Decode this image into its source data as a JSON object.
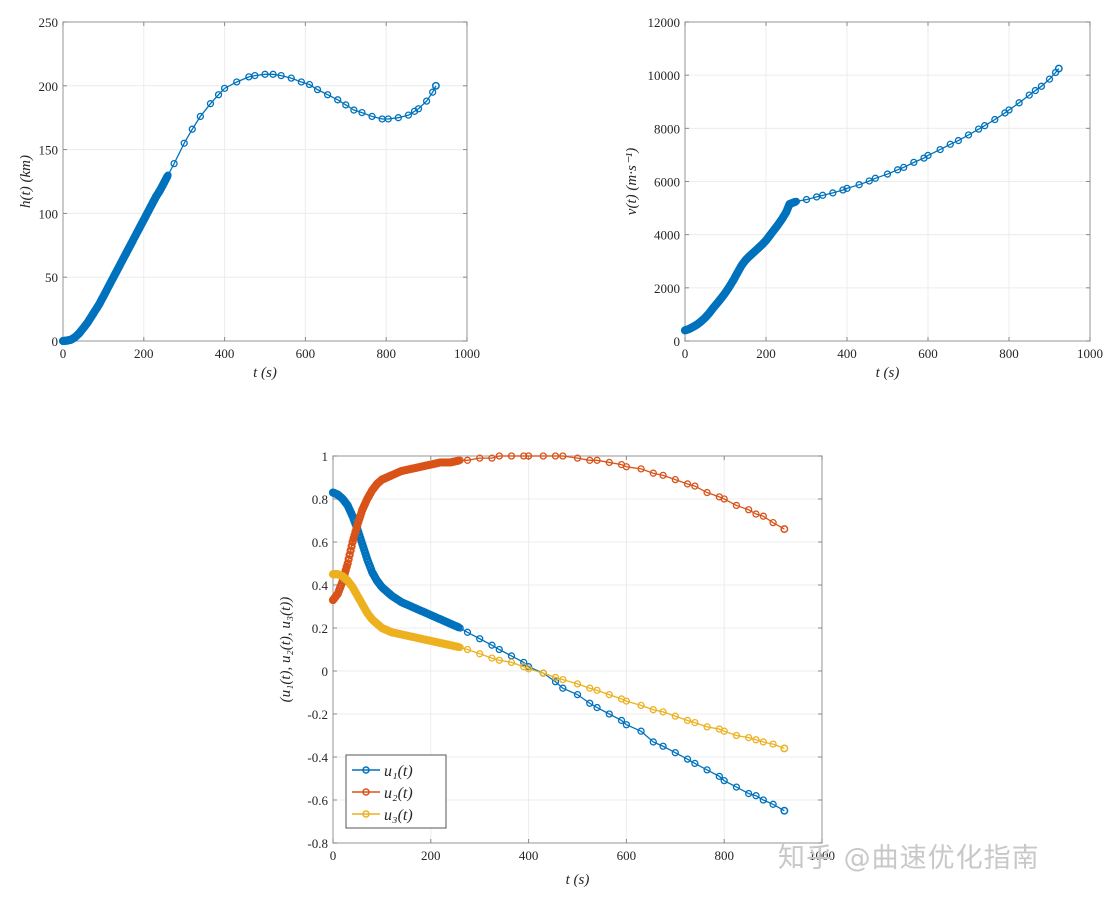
{
  "chart_data": [
    {
      "id": "altitude",
      "type": "line",
      "title": "",
      "xlabel": "t (s)",
      "ylabel": "h(t) (km)",
      "xlim": [
        0,
        1000
      ],
      "ylim": [
        0,
        250
      ],
      "xticks": [
        0,
        200,
        400,
        600,
        800,
        1000
      ],
      "yticks": [
        0,
        50,
        100,
        150,
        200,
        250
      ],
      "grid": true,
      "marker": "circle",
      "series": [
        {
          "name": "h(t)",
          "color": "#0072BD",
          "x": [
            0,
            10,
            20,
            30,
            40,
            50,
            60,
            70,
            80,
            90,
            100,
            110,
            120,
            130,
            140,
            150,
            160,
            170,
            180,
            190,
            200,
            210,
            220,
            230,
            240,
            250,
            260,
            275,
            300,
            320,
            340,
            365,
            385,
            400,
            430,
            460,
            475,
            500,
            520,
            540,
            565,
            590,
            610,
            630,
            655,
            680,
            700,
            720,
            740,
            765,
            790,
            805,
            830,
            855,
            870,
            880,
            900,
            915,
            923
          ],
          "y": [
            0,
            0.3,
            1,
            3,
            6,
            10,
            14,
            19,
            24,
            29,
            35,
            41,
            47,
            53,
            59,
            65,
            71,
            77,
            83,
            89,
            95,
            101,
            107,
            113,
            118,
            124,
            130,
            139,
            155,
            166,
            176,
            186,
            193,
            198,
            203,
            207,
            208,
            209,
            209,
            208,
            206,
            203,
            201,
            197,
            193,
            189,
            185,
            181,
            179,
            176,
            174,
            174,
            175,
            177,
            180,
            182,
            188,
            195,
            200
          ]
        }
      ]
    },
    {
      "id": "velocity",
      "type": "line",
      "title": "",
      "xlabel": "t (s)",
      "ylabel": "v(t) (m·s⁻¹)",
      "xlim": [
        0,
        1000
      ],
      "ylim": [
        0,
        12000
      ],
      "xticks": [
        0,
        200,
        400,
        600,
        800,
        1000
      ],
      "yticks": [
        0,
        2000,
        4000,
        6000,
        8000,
        10000,
        12000
      ],
      "grid": true,
      "marker": "circle",
      "series": [
        {
          "name": "v(t)",
          "color": "#0072BD",
          "x": [
            0,
            10,
            20,
            30,
            40,
            50,
            60,
            70,
            80,
            90,
            100,
            110,
            120,
            130,
            140,
            150,
            160,
            170,
            180,
            190,
            200,
            210,
            220,
            230,
            240,
            250,
            258,
            275,
            300,
            325,
            340,
            365,
            390,
            400,
            430,
            455,
            470,
            500,
            525,
            540,
            565,
            590,
            600,
            630,
            655,
            675,
            700,
            725,
            740,
            765,
            790,
            800,
            825,
            850,
            865,
            880,
            900,
            915,
            923
          ],
          "y": [
            400,
            450,
            530,
            620,
            740,
            880,
            1050,
            1250,
            1430,
            1620,
            1820,
            2050,
            2300,
            2580,
            2850,
            3050,
            3200,
            3340,
            3480,
            3620,
            3780,
            3980,
            4180,
            4380,
            4600,
            4850,
            5150,
            5250,
            5320,
            5420,
            5480,
            5570,
            5680,
            5740,
            5880,
            6020,
            6120,
            6280,
            6440,
            6530,
            6720,
            6880,
            6980,
            7200,
            7400,
            7540,
            7750,
            7970,
            8100,
            8330,
            8580,
            8690,
            8960,
            9250,
            9420,
            9580,
            9850,
            10100,
            10250
          ]
        }
      ]
    },
    {
      "id": "controls",
      "type": "line",
      "title": "",
      "xlabel": "t (s)",
      "ylabel": "(u₁(t), u₂(t), u₃(t))",
      "xlim": [
        0,
        1000
      ],
      "ylim": [
        -0.8,
        1
      ],
      "xticks": [
        0,
        200,
        400,
        600,
        800,
        1000
      ],
      "yticks": [
        -0.8,
        -0.6,
        -0.4,
        -0.2,
        0,
        0.2,
        0.4,
        0.6,
        0.8,
        1
      ],
      "grid": true,
      "marker": "circle",
      "legend_position": "lower left",
      "series": [
        {
          "name": "u₁(t)",
          "color": "#0072BD",
          "x": [
            0,
            10,
            20,
            30,
            40,
            50,
            60,
            70,
            80,
            90,
            100,
            110,
            120,
            140,
            160,
            180,
            200,
            220,
            240,
            260,
            275,
            300,
            325,
            340,
            365,
            390,
            400,
            430,
            455,
            470,
            500,
            525,
            540,
            565,
            590,
            600,
            630,
            655,
            675,
            700,
            725,
            740,
            765,
            790,
            800,
            825,
            850,
            865,
            880,
            900,
            923
          ],
          "y": [
            0.83,
            0.82,
            0.8,
            0.77,
            0.72,
            0.66,
            0.59,
            0.52,
            0.46,
            0.42,
            0.39,
            0.37,
            0.35,
            0.32,
            0.3,
            0.28,
            0.26,
            0.24,
            0.22,
            0.2,
            0.18,
            0.15,
            0.12,
            0.1,
            0.07,
            0.04,
            0.02,
            -0.01,
            -0.05,
            -0.08,
            -0.11,
            -0.15,
            -0.17,
            -0.2,
            -0.23,
            -0.25,
            -0.28,
            -0.33,
            -0.35,
            -0.38,
            -0.41,
            -0.43,
            -0.46,
            -0.49,
            -0.51,
            -0.54,
            -0.57,
            -0.58,
            -0.6,
            -0.62,
            -0.65
          ]
        },
        {
          "name": "u₂(t)",
          "color": "#D95319",
          "x": [
            0,
            10,
            20,
            30,
            40,
            50,
            60,
            70,
            80,
            90,
            100,
            110,
            120,
            140,
            160,
            180,
            200,
            220,
            240,
            260,
            275,
            300,
            325,
            340,
            365,
            390,
            400,
            430,
            455,
            470,
            500,
            525,
            540,
            565,
            590,
            600,
            630,
            655,
            675,
            700,
            725,
            740,
            765,
            790,
            800,
            825,
            850,
            865,
            880,
            900,
            923
          ],
          "y": [
            0.33,
            0.36,
            0.42,
            0.5,
            0.6,
            0.68,
            0.75,
            0.8,
            0.84,
            0.87,
            0.89,
            0.9,
            0.91,
            0.93,
            0.94,
            0.95,
            0.96,
            0.97,
            0.97,
            0.98,
            0.98,
            0.99,
            0.99,
            1.0,
            1.0,
            1.0,
            1.0,
            1.0,
            1.0,
            1.0,
            0.99,
            0.98,
            0.98,
            0.97,
            0.96,
            0.95,
            0.94,
            0.92,
            0.91,
            0.89,
            0.87,
            0.86,
            0.83,
            0.81,
            0.8,
            0.77,
            0.75,
            0.73,
            0.72,
            0.69,
            0.66
          ]
        },
        {
          "name": "u₃(t)",
          "color": "#EDB120",
          "x": [
            0,
            10,
            20,
            30,
            40,
            50,
            60,
            70,
            80,
            90,
            100,
            110,
            120,
            140,
            160,
            180,
            200,
            220,
            240,
            260,
            275,
            300,
            325,
            340,
            365,
            390,
            400,
            430,
            455,
            470,
            500,
            525,
            540,
            565,
            590,
            600,
            630,
            655,
            675,
            700,
            725,
            740,
            765,
            790,
            800,
            825,
            850,
            865,
            880,
            900,
            923
          ],
          "y": [
            0.45,
            0.45,
            0.44,
            0.42,
            0.39,
            0.35,
            0.31,
            0.27,
            0.24,
            0.22,
            0.2,
            0.19,
            0.18,
            0.17,
            0.16,
            0.15,
            0.14,
            0.13,
            0.12,
            0.11,
            0.1,
            0.08,
            0.06,
            0.05,
            0.04,
            0.02,
            0.01,
            -0.01,
            -0.03,
            -0.04,
            -0.06,
            -0.08,
            -0.09,
            -0.11,
            -0.13,
            -0.14,
            -0.16,
            -0.18,
            -0.19,
            -0.21,
            -0.23,
            -0.24,
            -0.26,
            -0.27,
            -0.28,
            -0.3,
            -0.31,
            -0.32,
            -0.33,
            -0.34,
            -0.36
          ]
        }
      ]
    }
  ],
  "watermark": {
    "text": "知乎 @曲速优化指南"
  }
}
